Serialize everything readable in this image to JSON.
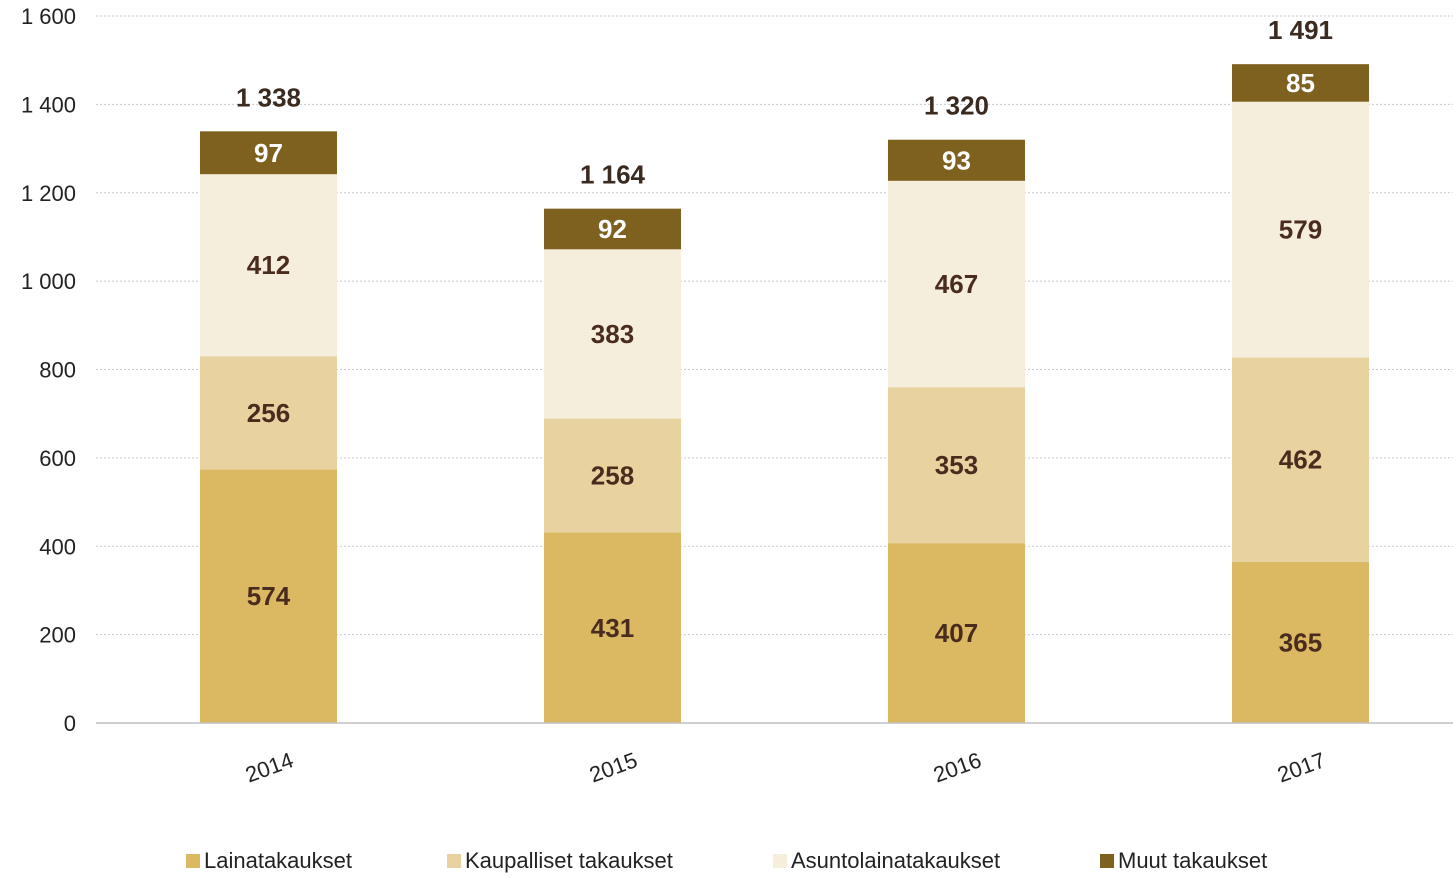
{
  "chart_data": {
    "type": "bar",
    "stacked": true,
    "categories": [
      "2014",
      "2015",
      "2016",
      "2017"
    ],
    "series": [
      {
        "name": "Lainatakaukset",
        "values": [
          574,
          431,
          407,
          365
        ],
        "color": "#dbb962"
      },
      {
        "name": "Kaupalliset takaukset",
        "values": [
          256,
          258,
          353,
          462
        ],
        "color": "#e8d3a0"
      },
      {
        "name": "Asuntolainatakaukset",
        "values": [
          412,
          383,
          467,
          579
        ],
        "color": "#f6eedc"
      },
      {
        "name": "Muut takaukset",
        "values": [
          97,
          92,
          93,
          85
        ],
        "color": "#7e611f"
      }
    ],
    "totals": [
      "1 338",
      "1 164",
      "1 320",
      "1 491"
    ],
    "y_ticks": [
      "0",
      "200",
      "400",
      "600",
      "800",
      "1 000",
      "1 200",
      "1 400",
      "1 600"
    ],
    "ylim": [
      0,
      1600
    ],
    "grid": true,
    "legend_position": "bottom",
    "title": "",
    "xlabel": "",
    "ylabel": ""
  }
}
